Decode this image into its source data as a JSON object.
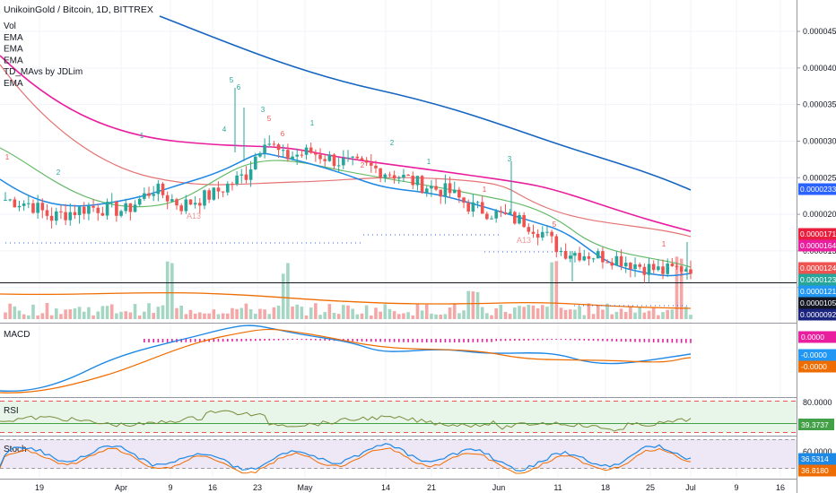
{
  "chart_data": {
    "type": "candlestick",
    "title": "UnikoinGold / Bitcoin, 1D, BITTREX",
    "indicator_labels": [
      "Vol",
      "EMA",
      "EMA",
      "EMA",
      "TD_MAvs by JDLim",
      "EMA"
    ],
    "x_ticks": [
      "19",
      "Apr",
      "9",
      "16",
      "23",
      "May",
      "14",
      "21",
      "Jun",
      "11",
      "18",
      "25",
      "Jul",
      "9",
      "16"
    ],
    "y_ticks": [
      "0.00004500",
      "0.00004000",
      "0.00003500",
      "0.00003000",
      "0.00002500",
      "0.00002000",
      "0.00001500",
      "0.00001000"
    ],
    "ylim": [
      8.5e-06,
      4.8e-05
    ],
    "price_tags": [
      {
        "text": "0.00002339",
        "bg": "#2962ff",
        "value": 2.339e-05
      },
      {
        "text": "0.00001711",
        "bg": "#e91e3c",
        "value": 1.711e-05
      },
      {
        "text": "0.00001646",
        "bg": "#e91e9e",
        "value": 1.646e-05
      },
      {
        "text": "0.00001248",
        "bg": "#ef5350",
        "value": 1.248e-05
      },
      {
        "text": "0.00001232",
        "bg": "#26a69a",
        "value": 1.232e-05
      },
      {
        "text": "0.00001210",
        "bg": "#2196f3",
        "value": 1.21e-05
      },
      {
        "text": "0.00001050",
        "bg": "#131722",
        "value": 1.05e-05
      },
      {
        "text": "0.00000921",
        "bg": "#1a237e",
        "value": 9.21e-06
      }
    ],
    "series": [
      {
        "name": "EMA",
        "color": "#1565c0"
      },
      {
        "name": "EMA",
        "color": "#e91e9e"
      },
      {
        "name": "EMA",
        "color": "#e57373"
      },
      {
        "name": "EMA",
        "color": "#66bb6a"
      },
      {
        "name": "EMA",
        "color": "#1e88e5"
      }
    ],
    "td_labels": [
      "A13",
      "A13"
    ],
    "grid": true
  },
  "macd": {
    "label": "MACD",
    "tags": [
      {
        "text": "0.0000",
        "bg": "#e91e9e"
      },
      {
        "text": "-0.0000",
        "bg": "#2196f3"
      },
      {
        "text": "-0.0000",
        "bg": "#ef6c00"
      }
    ]
  },
  "rsi": {
    "label": "RSI",
    "top_tick": "80.0000",
    "tag": {
      "text": "39.3737",
      "bg": "#43a047"
    }
  },
  "stoch": {
    "label": "Stoch",
    "top_tick": "60.0000",
    "tags": [
      {
        "text": "36.5314",
        "bg": "#1e88e5"
      },
      {
        "text": "36.8180",
        "bg": "#ef6c00"
      }
    ]
  }
}
